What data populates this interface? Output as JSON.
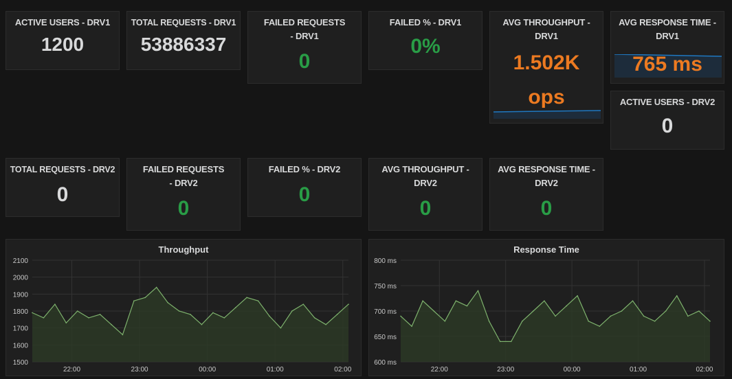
{
  "stats_row1": [
    {
      "title": "ACTIVE USERS - DRV1",
      "value": "1200"
    },
    {
      "title": "TOTAL REQUESTS - DRV1",
      "value": "53886337"
    },
    {
      "title": "FAILED REQUESTS - DRV1",
      "value": "0"
    },
    {
      "title": "FAILED % - DRV1",
      "value": "0%"
    },
    {
      "title": "AVG THROUGHPUT - DRV1",
      "value": "1.502K",
      "unit": "ops"
    },
    {
      "title": "AVG RESPONSE TIME - DRV1",
      "value": "765 ms"
    },
    {
      "title": "ACTIVE USERS - DRV2",
      "value": "0"
    }
  ],
  "stats_row2": [
    {
      "title": "TOTAL REQUESTS - DRV2",
      "value": "0"
    },
    {
      "title": "FAILED REQUESTS - DRV2",
      "value": "0"
    },
    {
      "title": "FAILED % - DRV2",
      "value": "0"
    },
    {
      "title": "AVG THROUGHPUT - DRV2",
      "value": "0"
    },
    {
      "title": "AVG RESPONSE TIME - DRV2",
      "value": "0"
    }
  ],
  "colors": {
    "green": "#299c46",
    "orange": "#ec7a21",
    "line": "#7eb26d",
    "fill": "#2c3a26",
    "grid": "#333333"
  },
  "chart_data": [
    {
      "type": "line",
      "title": "Throughput",
      "x_ticks": [
        "22:00",
        "23:00",
        "00:00",
        "01:00",
        "02:00"
      ],
      "y_ticks": [
        "1500",
        "1600",
        "1700",
        "1800",
        "1900",
        "2000",
        "2100"
      ],
      "ylim": [
        1500,
        2100
      ],
      "x": [
        "21:25",
        "21:35",
        "21:45",
        "21:55",
        "22:05",
        "22:15",
        "22:25",
        "22:35",
        "22:45",
        "22:55",
        "23:05",
        "23:15",
        "23:25",
        "23:35",
        "23:45",
        "23:55",
        "00:05",
        "00:15",
        "00:25",
        "00:35",
        "00:45",
        "00:55",
        "01:05",
        "01:15",
        "01:25",
        "01:35",
        "01:45",
        "01:55",
        "02:05"
      ],
      "series": [
        {
          "values": [
            1790,
            1760,
            1840,
            1730,
            1800,
            1760,
            1780,
            1720,
            1660,
            1860,
            1880,
            1940,
            1850,
            1800,
            1780,
            1720,
            1790,
            1760,
            1820,
            1880,
            1860,
            1770,
            1700,
            1800,
            1840,
            1760,
            1720,
            1780,
            1840
          ]
        }
      ]
    },
    {
      "type": "line",
      "title": "Response Time",
      "x_ticks": [
        "22:00",
        "23:00",
        "00:00",
        "01:00",
        "02:00"
      ],
      "y_ticks": [
        "600 ms",
        "650 ms",
        "700 ms",
        "750 ms",
        "800 ms"
      ],
      "ylim": [
        600,
        800
      ],
      "x": [
        "21:25",
        "21:35",
        "21:45",
        "21:55",
        "22:05",
        "22:15",
        "22:25",
        "22:35",
        "22:45",
        "22:55",
        "23:05",
        "23:15",
        "23:25",
        "23:35",
        "23:45",
        "23:55",
        "00:05",
        "00:15",
        "00:25",
        "00:35",
        "00:45",
        "00:55",
        "01:05",
        "01:15",
        "01:25",
        "01:35",
        "01:45",
        "01:55",
        "02:05"
      ],
      "series": [
        {
          "values": [
            690,
            670,
            720,
            700,
            680,
            720,
            710,
            740,
            680,
            640,
            640,
            680,
            700,
            720,
            690,
            710,
            730,
            680,
            670,
            690,
            700,
            720,
            690,
            680,
            700,
            730,
            690,
            700,
            680
          ]
        }
      ]
    }
  ]
}
